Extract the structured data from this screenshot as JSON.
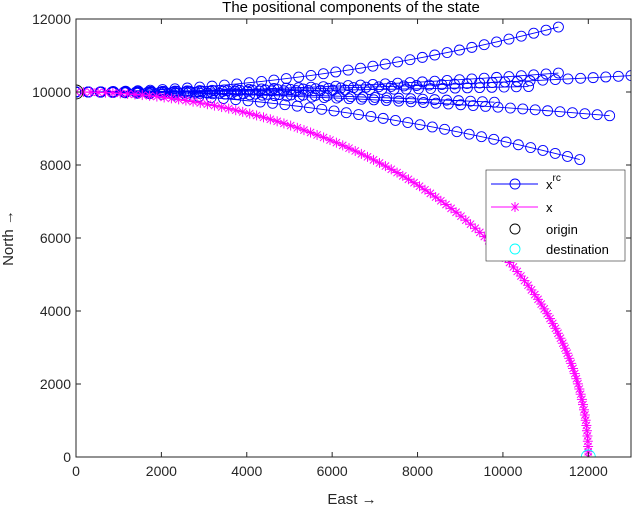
{
  "chart_data": {
    "type": "line",
    "title": "The positional components of the state",
    "xlabel": "East →",
    "ylabel": "North →",
    "xlim": [
      0,
      13000
    ],
    "ylim": [
      0,
      12000
    ],
    "xticks": [
      0,
      2000,
      4000,
      6000,
      8000,
      10000,
      12000
    ],
    "yticks": [
      0,
      2000,
      4000,
      6000,
      8000,
      10000,
      12000
    ],
    "grid": false,
    "legend_position": "inside right",
    "legend": [
      {
        "label": "x",
        "superscript": "rc",
        "color": "#0000ff",
        "marker": "circle",
        "line": true
      },
      {
        "label": "x",
        "superscript": "",
        "color": "#ff00ff",
        "marker": "asterisk",
        "line": true
      },
      {
        "label": "origin",
        "superscript": "",
        "color": "#000000",
        "marker": "circle",
        "line": false
      },
      {
        "label": "destination",
        "superscript": "",
        "color": "#00ffff",
        "marker": "circle",
        "line": false
      }
    ],
    "series": [
      {
        "name": "x^rc",
        "color": "#0000ff",
        "marker": "circle",
        "trajectories": [
          {
            "start": [
              0,
              10000
            ],
            "end": [
              11300,
              11780
            ],
            "points": 40
          },
          {
            "start": [
              0,
              10000
            ],
            "end": [
              13000,
              10450
            ],
            "points": 45
          },
          {
            "start": [
              0,
              10000
            ],
            "end": [
              11300,
              10520
            ],
            "points": 40
          },
          {
            "start": [
              0,
              10000
            ],
            "end": [
              10600,
              10150
            ],
            "points": 38
          },
          {
            "start": [
              0,
              10000
            ],
            "end": [
              9800,
              9720
            ],
            "points": 36
          },
          {
            "start": [
              0,
              10000
            ],
            "end": [
              12500,
              9350
            ],
            "points": 44
          },
          {
            "start": [
              0,
              10000
            ],
            "end": [
              11800,
              8150
            ],
            "points": 42
          }
        ]
      },
      {
        "name": "x",
        "color": "#ff00ff",
        "marker": "asterisk",
        "curve": {
          "type": "quarter-ellipse",
          "center": [
            0,
            0
          ],
          "radius_x": 12000,
          "radius_y": 10000
        },
        "points": 110
      }
    ],
    "origin_marker": {
      "x": 0,
      "y": 10000,
      "color": "#000000"
    },
    "destination_marker": {
      "x": 12000,
      "y": 0,
      "color": "#00ffff"
    }
  }
}
